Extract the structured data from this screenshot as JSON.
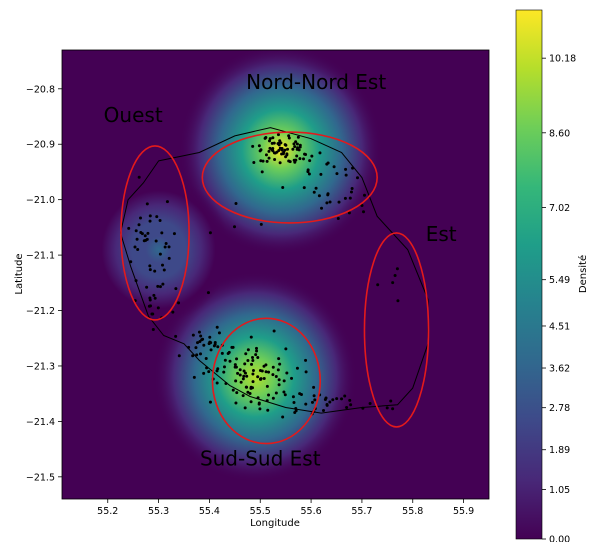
{
  "chart_data": {
    "type": "heatmap",
    "title": "",
    "xlabel": "Longitude",
    "ylabel": "Latitude",
    "xlim": [
      55.11,
      55.95
    ],
    "ylim": [
      -21.54,
      -20.73
    ],
    "x_ticks": [
      "55.2",
      "55.3",
      "55.4",
      "55.5",
      "55.6",
      "55.7",
      "55.8",
      "55.9"
    ],
    "x_tick_values": [
      55.2,
      55.3,
      55.4,
      55.5,
      55.6,
      55.7,
      55.8,
      55.9
    ],
    "y_ticks": [
      "−20.8",
      "−20.9",
      "−21.0",
      "−21.1",
      "−21.2",
      "−21.3",
      "−21.4",
      "−21.5"
    ],
    "y_tick_values": [
      -20.8,
      -20.9,
      -21.0,
      -21.1,
      -21.2,
      -21.3,
      -21.4,
      -21.5
    ],
    "colorbar": {
      "label": "Densité",
      "range": [
        0.0,
        11.2
      ],
      "ticks": [
        "0.00",
        "1.05",
        "1.89",
        "2.78",
        "3.62",
        "4.51",
        "5.49",
        "7.02",
        "8.60",
        "10.18"
      ],
      "tick_values": [
        0.0,
        1.05,
        1.89,
        2.78,
        3.62,
        4.51,
        5.49,
        7.02,
        8.6,
        10.18
      ],
      "colormap": "viridis",
      "colors": [
        "#440154",
        "#482878",
        "#3e4989",
        "#31688e",
        "#26828e",
        "#1f9e89",
        "#35b779",
        "#6ece58",
        "#b5de2b",
        "#fde725"
      ]
    },
    "density_peaks": [
      {
        "lon": 55.54,
        "lat": -20.91,
        "intensity": 11.2
      },
      {
        "lon": 55.49,
        "lat": -21.32,
        "intensity": 10.4
      },
      {
        "lon": 55.3,
        "lat": -21.09,
        "intensity": 3.4
      }
    ],
    "regions": [
      {
        "label": "Nord-Nord Est",
        "center": [
          55.558,
          -20.96
        ],
        "radii": [
          0.172,
          0.082
        ],
        "label_pos": [
          55.61,
          -20.8
        ]
      },
      {
        "label": "Ouest",
        "center": [
          55.293,
          -21.06
        ],
        "radii": [
          0.067,
          0.157
        ],
        "label_pos": [
          55.25,
          -20.86
        ]
      },
      {
        "label": "Est",
        "center": [
          55.768,
          -21.235
        ],
        "radii": [
          0.063,
          0.175
        ],
        "label_pos": [
          55.856,
          -21.075
        ]
      },
      {
        "label": "Sud-Sud Est",
        "center": [
          55.512,
          -21.327
        ],
        "radii": [
          0.106,
          0.113
        ],
        "label_pos": [
          55.5,
          -21.48
        ]
      }
    ],
    "region_color": "#e31a1c",
    "point_color": "#000000",
    "coastline": [
      [
        55.3,
        -20.93
      ],
      [
        55.38,
        -20.915
      ],
      [
        55.45,
        -20.885
      ],
      [
        55.52,
        -20.87
      ],
      [
        55.6,
        -20.89
      ],
      [
        55.66,
        -20.915
      ],
      [
        55.7,
        -20.96
      ],
      [
        55.73,
        -21.03
      ],
      [
        55.79,
        -21.09
      ],
      [
        55.83,
        -21.18
      ],
      [
        55.83,
        -21.26
      ],
      [
        55.8,
        -21.34
      ],
      [
        55.77,
        -21.37
      ],
      [
        55.7,
        -21.375
      ],
      [
        55.62,
        -21.385
      ],
      [
        55.55,
        -21.375
      ],
      [
        55.48,
        -21.355
      ],
      [
        55.44,
        -21.335
      ],
      [
        55.38,
        -21.29
      ],
      [
        55.35,
        -21.26
      ],
      [
        55.31,
        -21.245
      ],
      [
        55.28,
        -21.21
      ],
      [
        55.245,
        -21.12
      ],
      [
        55.225,
        -21.06
      ],
      [
        55.24,
        -21.0
      ],
      [
        55.27,
        -20.97
      ],
      [
        55.3,
        -20.93
      ]
    ],
    "point_clusters": [
      {
        "lon": 55.543,
        "lat": -20.912,
        "spread": [
          0.024,
          0.014
        ],
        "count": 70
      },
      {
        "lon": 55.62,
        "lat": -20.955,
        "spread": [
          0.035,
          0.025
        ],
        "count": 22
      },
      {
        "lon": 55.66,
        "lat": -21.0,
        "spread": [
          0.02,
          0.025
        ],
        "count": 15
      },
      {
        "lon": 55.29,
        "lat": -21.07,
        "spread": [
          0.022,
          0.06
        ],
        "count": 45
      },
      {
        "lon": 55.3,
        "lat": -21.19,
        "spread": [
          0.01,
          0.02
        ],
        "count": 10
      },
      {
        "lon": 55.395,
        "lat": -21.26,
        "spread": [
          0.03,
          0.015
        ],
        "count": 30
      },
      {
        "lon": 55.49,
        "lat": -21.315,
        "spread": [
          0.045,
          0.03
        ],
        "count": 95
      },
      {
        "lon": 55.6,
        "lat": -21.365,
        "spread": [
          0.045,
          0.012
        ],
        "count": 30
      },
      {
        "lon": 55.72,
        "lat": -21.37,
        "spread": [
          0.03,
          0.008
        ],
        "count": 8
      },
      {
        "lon": 55.76,
        "lat": -21.14,
        "spread": [
          0.015,
          0.02
        ],
        "count": 5
      },
      {
        "lon": 55.48,
        "lat": -21.05,
        "spread": [
          0.05,
          0.05
        ],
        "count": 6
      }
    ]
  }
}
